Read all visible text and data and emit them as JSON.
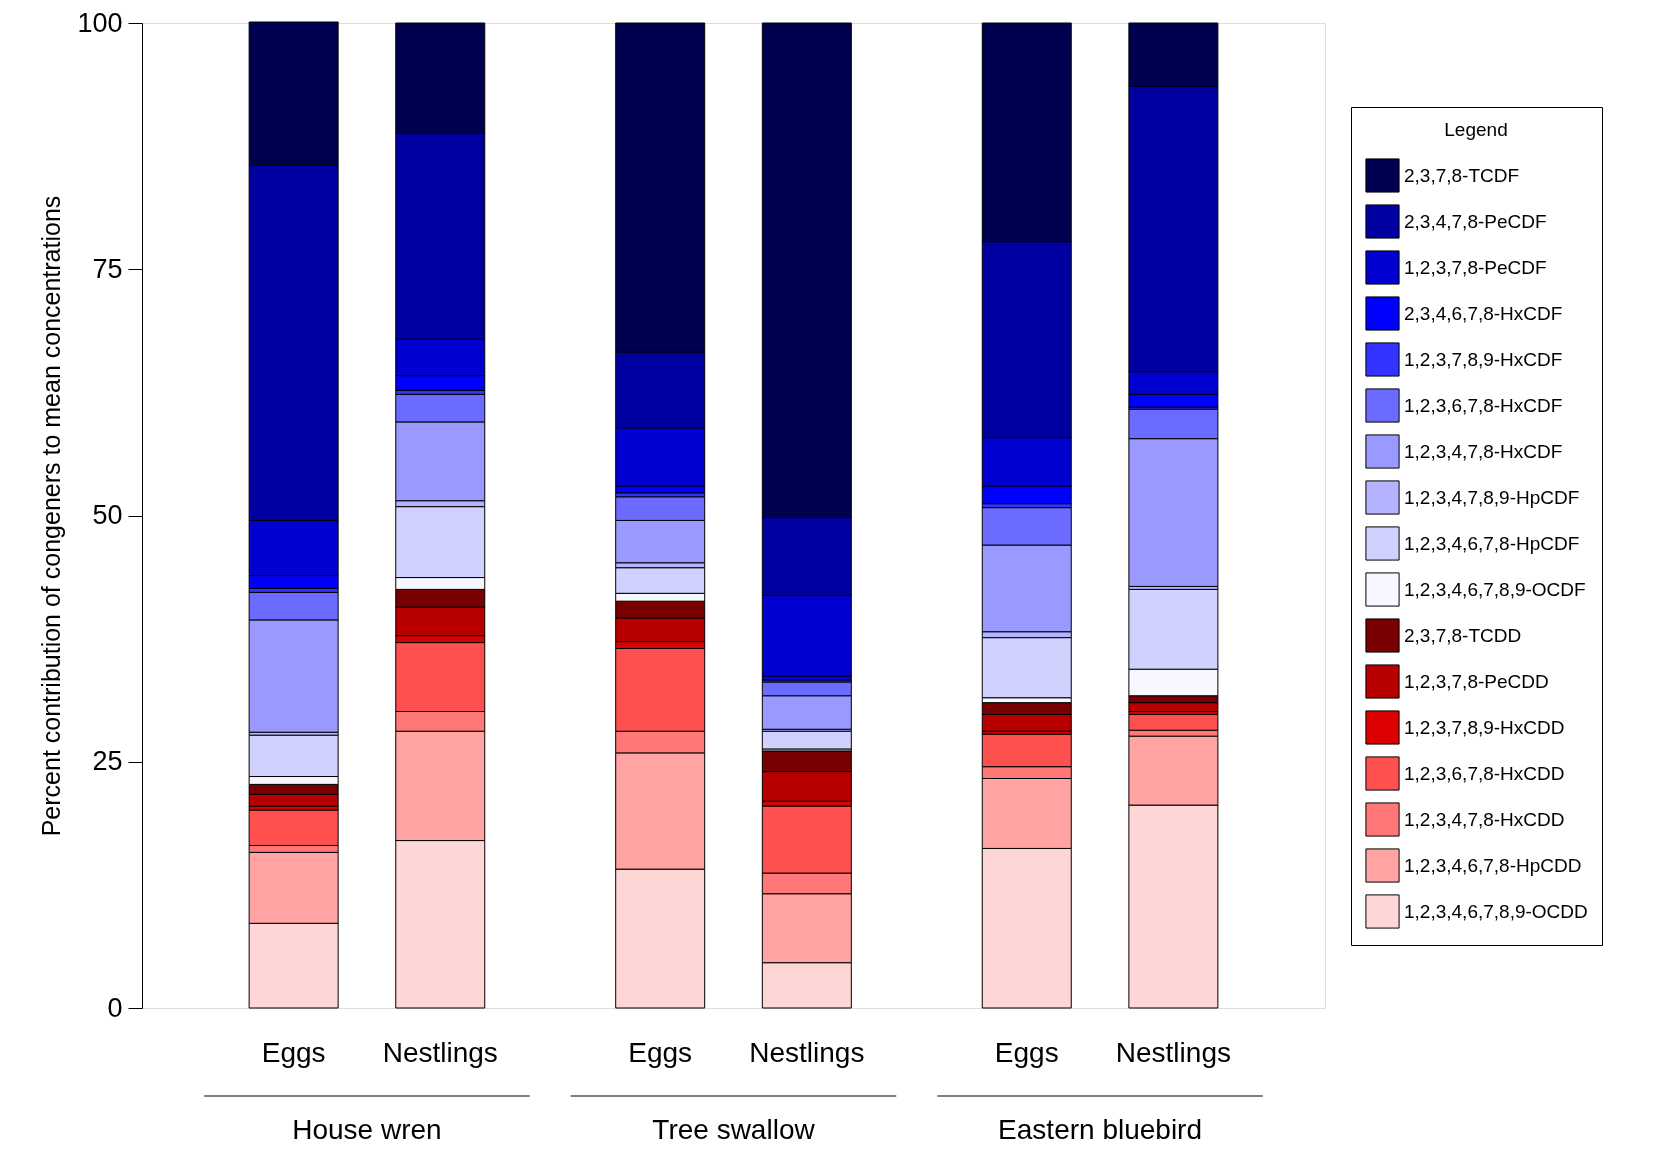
{
  "chart_data": {
    "type": "bar",
    "stacked": true,
    "ylabel": "Percent contribution of congeners to mean concentrations",
    "legend_title": "Legend",
    "legend": "right",
    "grid": false,
    "categories": [
      "Eggs",
      "Nestlings",
      "Eggs",
      "Nestlings",
      "Eggs",
      "Nestlings"
    ],
    "annotations": [
      "House wren",
      "Tree swallow",
      "Eastern bluebird"
    ],
    "ylim": [
      0,
      100
    ],
    "yticks": [
      0,
      25,
      50,
      75,
      100
    ],
    "series": [
      {
        "name": "1,2,3,4,6,7,8,9-OCDD",
        "color": "#ffd6d6",
        "values": [
          8.6,
          17.0,
          14.1,
          4.6,
          16.2,
          20.6
        ]
      },
      {
        "name": "1,2,3,4,6,7,8-HpCDD",
        "color": "#ffa3a3",
        "values": [
          7.2,
          11.1,
          11.8,
          7.0,
          7.1,
          7.0
        ]
      },
      {
        "name": "1,2,3,4,7,8-HxCDD",
        "color": "#ff7777",
        "values": [
          0.7,
          2.0,
          2.2,
          2.1,
          1.2,
          0.6
        ]
      },
      {
        "name": "1,2,3,6,7,8-HxCDD",
        "color": "#ff5050",
        "values": [
          3.6,
          7.0,
          8.4,
          6.8,
          3.3,
          1.6
        ]
      },
      {
        "name": "1,2,3,7,8,9-HxCDD",
        "color": "#dd0000",
        "values": [
          0.4,
          0.7,
          0.7,
          0.5,
          0.3,
          0.3
        ]
      },
      {
        "name": "1,2,3,7,8-PeCDD",
        "color": "#b80000",
        "values": [
          1.2,
          2.9,
          2.4,
          3.0,
          1.7,
          0.9
        ]
      },
      {
        "name": "2,3,7,8-TCDD",
        "color": "#780000",
        "values": [
          1.0,
          1.8,
          1.7,
          2.1,
          1.2,
          0.7
        ]
      },
      {
        "name": "1,2,3,4,6,7,8,9-OCDF",
        "color": "#f7f7ff",
        "values": [
          0.8,
          1.2,
          0.8,
          0.2,
          0.5,
          2.7
        ]
      },
      {
        "name": "1,2,3,4,6,7,8-HpCDF",
        "color": "#d1d1ff",
        "values": [
          4.2,
          7.2,
          2.6,
          1.8,
          6.1,
          8.1
        ]
      },
      {
        "name": "1,2,3,4,7,8,9-HpCDF",
        "color": "#b3b3ff",
        "values": [
          0.3,
          0.6,
          0.5,
          0.2,
          0.6,
          0.3
        ]
      },
      {
        "name": "1,2,3,4,7,8-HxCDF",
        "color": "#9999ff",
        "values": [
          11.4,
          8.0,
          4.3,
          3.4,
          8.8,
          15.0
        ]
      },
      {
        "name": "1,2,3,6,7,8-HxCDF",
        "color": "#6b6bff",
        "values": [
          2.8,
          2.8,
          2.4,
          1.4,
          3.8,
          3.0
        ]
      },
      {
        "name": "1,2,3,7,8,9-HxCDF",
        "color": "#3333ff",
        "values": [
          0.4,
          0.4,
          0.4,
          0.2,
          0.4,
          0.2
        ]
      },
      {
        "name": "2,3,4,6,7,8-HxCDF",
        "color": "#0000ff",
        "values": [
          1.3,
          1.5,
          0.7,
          0.4,
          1.8,
          1.3
        ]
      },
      {
        "name": "1,2,3,7,8-PeCDF",
        "color": "#0000d0",
        "values": [
          5.6,
          3.7,
          5.9,
          8.2,
          4.9,
          2.3
        ]
      },
      {
        "name": "2,3,4,7,8-PeCDF",
        "color": "#0000a0",
        "values": [
          36.1,
          20.9,
          7.7,
          7.9,
          19.9,
          29.0
        ]
      },
      {
        "name": "2,3,7,8-TCDF",
        "color": "#000050",
        "values": [
          14.5,
          11.2,
          33.4,
          50.2,
          22.2,
          6.4
        ]
      }
    ]
  }
}
